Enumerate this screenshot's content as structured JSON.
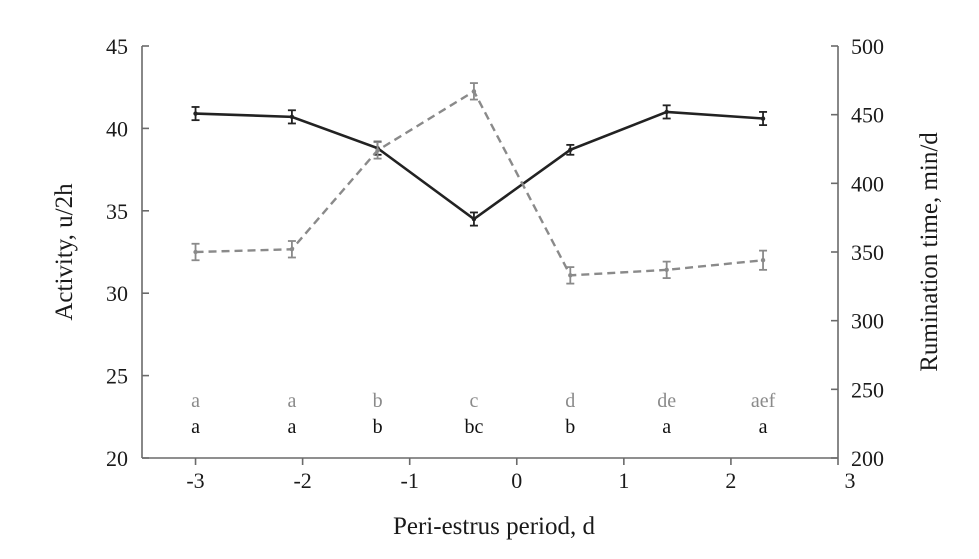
{
  "chart_data": {
    "type": "line",
    "xlabel": "Peri-estrus period, d",
    "ylabel_left": "Activity, u/2h",
    "ylabel_right": "Rumination time, min/d",
    "x_ticks": [
      "-3",
      "-2",
      "-1",
      "0",
      "1",
      "2",
      "3"
    ],
    "xlim": [
      -3.5,
      3.0
    ],
    "y_left_ticks": [
      "20",
      "25",
      "30",
      "35",
      "40",
      "45"
    ],
    "y_left_lim": [
      20,
      45
    ],
    "y_right_ticks": [
      "200",
      "250",
      "300",
      "350",
      "400",
      "450",
      "500"
    ],
    "y_right_lim": [
      200,
      500
    ],
    "grid": false,
    "series": [
      {
        "axis": "left",
        "style": "solid",
        "color": "#222222",
        "x": [
          -3.0,
          -2.1,
          -1.3,
          -0.4,
          0.5,
          1.4,
          2.3
        ],
        "values": [
          40.9,
          40.7,
          38.8,
          34.5,
          38.7,
          41.0,
          40.6
        ],
        "error": [
          0.4,
          0.4,
          0.4,
          0.4,
          0.3,
          0.4,
          0.4
        ]
      },
      {
        "axis": "right",
        "style": "dashed",
        "color": "#8a8a8a",
        "x": [
          -3.0,
          -2.1,
          -1.3,
          -0.4,
          0.5,
          1.4,
          2.3
        ],
        "values": [
          350,
          352,
          424,
          467,
          333,
          337,
          344
        ],
        "error": [
          6,
          6,
          6,
          6,
          6,
          6,
          7
        ]
      }
    ],
    "significance_letters": {
      "rumination": {
        "color": "#8a8a8a",
        "labels": [
          "a",
          "a",
          "b",
          "c",
          "d",
          "de",
          "aef"
        ]
      },
      "activity": {
        "color": "#111111",
        "labels": [
          "a",
          "a",
          "b",
          "bc",
          "b",
          "a",
          "a"
        ]
      }
    }
  }
}
